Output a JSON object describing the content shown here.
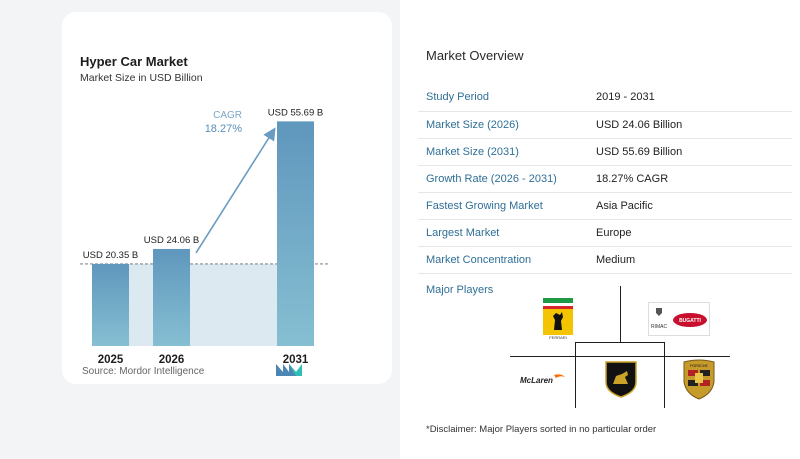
{
  "chart_data": {
    "type": "bar",
    "title": "Hyper Car Market",
    "subtitle": "Market Size in USD Billion",
    "categories": [
      "2025",
      "2026",
      "2031"
    ],
    "values": [
      20.35,
      24.06,
      55.69
    ],
    "data_labels": [
      "USD 20.35 B",
      "USD 24.06 B",
      "USD 55.69 B"
    ],
    "annotation": {
      "label": "CAGR",
      "value": "18.27%"
    },
    "ylim": [
      0,
      60
    ],
    "colors": {
      "bar": "#5f97bd",
      "bar_fade": "#8ec6d6",
      "band": "#dde9f1",
      "arrow": "#6a9cc2"
    }
  },
  "source": "Source: Mordor Intelligence",
  "overview": {
    "title": "Market Overview",
    "rows": [
      {
        "key": "Study Period",
        "value": "2019 - 2031"
      },
      {
        "key": "Market Size (2026)",
        "value": "USD 24.06 Billion"
      },
      {
        "key": "Market Size (2031)",
        "value": "USD 55.69 Billion"
      },
      {
        "key": "Growth Rate (2026 - 2031)",
        "value": "18.27% CAGR"
      },
      {
        "key": "Fastest Growing Market",
        "value": "Asia Pacific"
      },
      {
        "key": "Largest Market",
        "value": "Europe"
      },
      {
        "key": "Market Concentration",
        "value": "Medium"
      }
    ]
  },
  "players": {
    "title": "Major Players",
    "logos": {
      "ferrari": "FERRARI",
      "rimac": "RIMAC",
      "bugatti": "BUGATTI",
      "mclaren": "McLaren",
      "porsche": "PORSCHE"
    }
  },
  "disclaimer": "*Disclaimer: Major Players sorted in no particular order"
}
